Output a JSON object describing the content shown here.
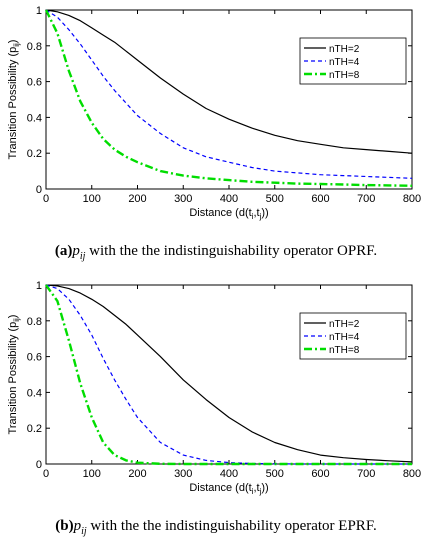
{
  "chart_data": [
    {
      "type": "line",
      "id": "a",
      "caption_label": "(a)",
      "caption_var": "p",
      "caption_sub": "ij",
      "caption_text": " with the the indistinguishability operator OPRF.",
      "ylabel_main": "Transition Possibility (p",
      "ylabel_sub": "ij",
      "ylabel_close": ")",
      "xlabel_main": "Distance (d(t",
      "xlabel_sub1": "i",
      "xlabel_sep": ",t",
      "xlabel_sub2": "j",
      "xlabel_close": "))",
      "xlim": [
        0,
        800
      ],
      "ylim": [
        0,
        1
      ],
      "xticks": [
        0,
        100,
        200,
        300,
        400,
        500,
        600,
        700,
        800
      ],
      "yticks": [
        0,
        0.2,
        0.4,
        0.6,
        0.8,
        1
      ],
      "xtick_labels": [
        "0",
        "100",
        "200",
        "300",
        "400",
        "500",
        "600",
        "700",
        "800"
      ],
      "ytick_labels": [
        "0",
        "0.2",
        "0.4",
        "0.6",
        "0.8",
        "1"
      ],
      "grid": false,
      "legend_position": "top-right",
      "x": [
        0,
        25,
        50,
        75,
        100,
        125,
        150,
        175,
        200,
        250,
        300,
        350,
        400,
        450,
        500,
        550,
        600,
        650,
        700,
        750,
        800
      ],
      "series": [
        {
          "name": "nTH=2",
          "color": "#000000",
          "style": "solid",
          "values": [
            1.0,
            0.99,
            0.97,
            0.94,
            0.9,
            0.86,
            0.82,
            0.77,
            0.72,
            0.62,
            0.53,
            0.45,
            0.39,
            0.34,
            0.3,
            0.27,
            0.25,
            0.23,
            0.22,
            0.21,
            0.2
          ]
        },
        {
          "name": "nTH=4",
          "color": "#0000ff",
          "style": "dashed",
          "values": [
            1.0,
            0.96,
            0.89,
            0.81,
            0.72,
            0.63,
            0.55,
            0.48,
            0.41,
            0.31,
            0.23,
            0.18,
            0.15,
            0.12,
            0.1,
            0.09,
            0.08,
            0.075,
            0.07,
            0.065,
            0.06
          ]
        },
        {
          "name": "nTH=8",
          "color": "#00dd00",
          "style": "dashdot",
          "values": [
            1.0,
            0.87,
            0.66,
            0.49,
            0.37,
            0.28,
            0.22,
            0.18,
            0.15,
            0.1,
            0.075,
            0.06,
            0.05,
            0.04,
            0.035,
            0.03,
            0.028,
            0.025,
            0.022,
            0.02,
            0.018
          ]
        }
      ]
    },
    {
      "type": "line",
      "id": "b",
      "caption_label": "(b)",
      "caption_var": "p",
      "caption_sub": "ij",
      "caption_text": " with the the indistinguishability operator EPRF.",
      "ylabel_main": "Transition Possibility (p",
      "ylabel_sub": "ij",
      "ylabel_close": ")",
      "xlabel_main": "Distance (d(t",
      "xlabel_sub1": "i",
      "xlabel_sep": ",t",
      "xlabel_sub2": "j",
      "xlabel_close": "))",
      "xlim": [
        0,
        800
      ],
      "ylim": [
        0,
        1
      ],
      "xticks": [
        0,
        100,
        200,
        300,
        400,
        500,
        600,
        700,
        800
      ],
      "yticks": [
        0,
        0.2,
        0.4,
        0.6,
        0.8,
        1
      ],
      "xtick_labels": [
        "0",
        "100",
        "200",
        "300",
        "400",
        "500",
        "600",
        "700",
        "800"
      ],
      "ytick_labels": [
        "0",
        "0.2",
        "0.4",
        "0.6",
        "0.8",
        "1"
      ],
      "grid": false,
      "legend_position": "top-right",
      "x": [
        0,
        25,
        50,
        75,
        100,
        125,
        150,
        175,
        200,
        250,
        300,
        350,
        400,
        450,
        500,
        550,
        600,
        650,
        700,
        750,
        800
      ],
      "series": [
        {
          "name": "nTH=2",
          "color": "#000000",
          "style": "solid",
          "values": [
            1.0,
            0.995,
            0.98,
            0.955,
            0.92,
            0.88,
            0.83,
            0.78,
            0.72,
            0.6,
            0.47,
            0.36,
            0.26,
            0.18,
            0.12,
            0.08,
            0.05,
            0.035,
            0.025,
            0.018,
            0.012
          ]
        },
        {
          "name": "nTH=4",
          "color": "#0000ff",
          "style": "dashed",
          "values": [
            1.0,
            0.98,
            0.92,
            0.83,
            0.72,
            0.59,
            0.47,
            0.36,
            0.26,
            0.12,
            0.05,
            0.02,
            0.008,
            0.003,
            0.001,
            0.0,
            0.0,
            0.0,
            0.0,
            0.0,
            0.0
          ]
        },
        {
          "name": "nTH=8",
          "color": "#00dd00",
          "style": "dashdot",
          "values": [
            1.0,
            0.91,
            0.69,
            0.45,
            0.26,
            0.12,
            0.05,
            0.02,
            0.007,
            0.001,
            0.0,
            0.0,
            0.0,
            0.0,
            0.0,
            0.0,
            0.0,
            0.0,
            0.0,
            0.0,
            0.0
          ]
        }
      ]
    }
  ]
}
